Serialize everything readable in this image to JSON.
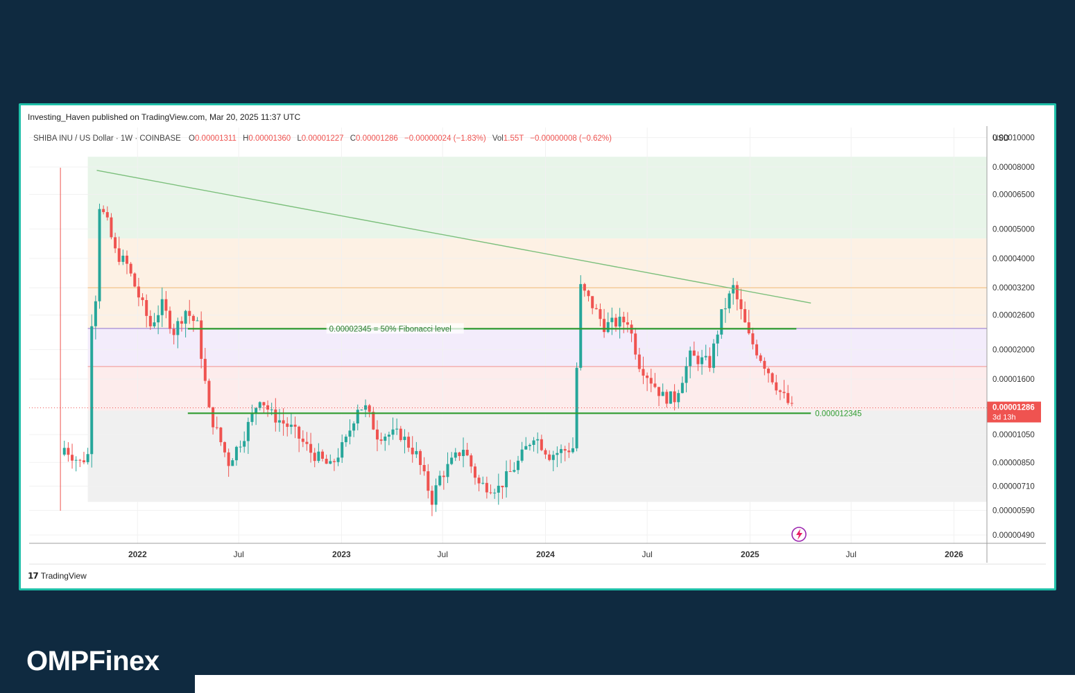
{
  "published": "Investing_Haven published on TradingView.com, Mar 20, 2025 11:37 UTC",
  "brand": {
    "tradingview": "TradingView",
    "logo_prefix": "OMPF",
    "logo_i": "i",
    "logo_suffix": "nex"
  },
  "header": {
    "symbol": "SHIBA INU / US Dollar · 1W · COINBASE",
    "o_label": "O",
    "o_value": "0.00001311",
    "h_label": "H",
    "h_value": "0.00001360",
    "l_label": "L",
    "l_value": "0.00001227",
    "c_label": "C",
    "c_value": "0.00001286",
    "change": "−0.00000024 (−1.83%)",
    "vol_label": "Vol",
    "vol_value": "1.55T",
    "vol_change": "−0.00000008 (−0.62%)"
  },
  "colors": {
    "up": "#26a69a",
    "down": "#ef5350",
    "trend": "#7bbf7b",
    "support": "#2e9b2e",
    "price_tag": "#ef5350"
  },
  "chart_data": {
    "type": "candlestick",
    "currency": "USD",
    "scale": "log",
    "y_ticks": [
      "0.00010000",
      "0.00008000",
      "0.00006500",
      "0.00005000",
      "0.00004000",
      "0.00003200",
      "0.00002600",
      "0.00002000",
      "0.00001600",
      "0.00001050",
      "0.00000850",
      "0.00000710",
      "0.00000590",
      "0.00000490"
    ],
    "x_ticks": [
      "2022",
      "Jul",
      "2023",
      "Jul",
      "2024",
      "Jul",
      "2025",
      "Jul",
      "2026"
    ],
    "x_tick_dates": [
      "2022-01-01",
      "2022-07-01",
      "2023-01-01",
      "2023-07-01",
      "2024-01-01",
      "2024-07-01",
      "2025-01-01",
      "2025-07-01",
      "2026-01-01"
    ],
    "last_price": "0.00001286",
    "countdown": "3d 13h",
    "fib_label": "0.00002345 = 50% Fibonacci level",
    "support_label": "0.000012345",
    "fib_zones": [
      {
        "from": 4.65e-05,
        "to": 8.65e-05,
        "color": "#e8f5e9"
      },
      {
        "from": 2.35e-05,
        "to": 4.65e-05,
        "color": "#fdf1e4"
      },
      {
        "from": 1.76e-05,
        "to": 2.35e-05,
        "color": "#f3ecfb"
      },
      {
        "from": 1.26e-05,
        "to": 1.76e-05,
        "color": "#fdecec"
      },
      {
        "from": 6.3e-06,
        "to": 1.26e-05,
        "color": "#f0f0f0"
      }
    ],
    "fib_lines": [
      {
        "price": 3.2e-05,
        "color": "#f3c38a"
      },
      {
        "price": 2.35e-05,
        "color": "#9b7fd1"
      },
      {
        "price": 1.76e-05,
        "color": "#f1a3a3"
      }
    ],
    "trendline": {
      "from": {
        "date": "2021-10-20",
        "price": 7.8e-05
      },
      "to": {
        "date": "2025-04-20",
        "price": 2.85e-05
      }
    },
    "support_levels": [
      {
        "price": 2.345e-05,
        "from": "2022-04-01",
        "to": "2025-03-25"
      },
      {
        "price": 1.2345e-05,
        "from": "2022-04-01",
        "to": "2025-04-20"
      }
    ],
    "last_price_value": 1.286e-05,
    "anchors": [
      [
        "2021-08-23",
        9.5e-06
      ],
      [
        "2021-09-20",
        8.5e-06
      ],
      [
        "2021-10-04",
        9e-06
      ],
      [
        "2021-10-11",
        2.5e-05
      ],
      [
        "2021-10-18",
        3e-05
      ],
      [
        "2021-10-25",
        6e-05
      ],
      [
        "2021-11-08",
        5.2e-05
      ],
      [
        "2021-11-22",
        4.2e-05
      ],
      [
        "2021-12-13",
        3.8e-05
      ],
      [
        "2022-01-03",
        3e-05
      ],
      [
        "2022-01-24",
        2.4e-05
      ],
      [
        "2022-02-14",
        2.8e-05
      ],
      [
        "2022-03-07",
        2.3e-05
      ],
      [
        "2022-03-28",
        2.7e-05
      ],
      [
        "2022-04-18",
        2.4e-05
      ],
      [
        "2022-05-09",
        1.25e-05
      ],
      [
        "2022-06-13",
        8.5e-06
      ],
      [
        "2022-07-11",
        1.05e-05
      ],
      [
        "2022-08-08",
        1.4e-05
      ],
      [
        "2022-08-29",
        1.22e-05
      ],
      [
        "2022-10-03",
        1.1e-05
      ],
      [
        "2022-11-07",
        9.2e-06
      ],
      [
        "2022-12-12",
        8.2e-06
      ],
      [
        "2023-01-09",
        1e-05
      ],
      [
        "2023-01-30",
        1.3e-05
      ],
      [
        "2023-02-13",
        1.28e-05
      ],
      [
        "2023-03-06",
        1.05e-05
      ],
      [
        "2023-04-17",
        1.05e-05
      ],
      [
        "2023-05-15",
        9e-06
      ],
      [
        "2023-06-12",
        6.4e-06
      ],
      [
        "2023-06-26",
        7.6e-06
      ],
      [
        "2023-08-07",
        9.5e-06
      ],
      [
        "2023-09-04",
        7.2e-06
      ],
      [
        "2023-10-09",
        7e-06
      ],
      [
        "2023-11-13",
        8.5e-06
      ],
      [
        "2023-12-11",
        1.05e-05
      ],
      [
        "2024-01-08",
        9e-06
      ],
      [
        "2024-02-19",
        9.5e-06
      ],
      [
        "2024-03-04",
        3.2e-05
      ],
      [
        "2024-03-25",
        2.8e-05
      ],
      [
        "2024-04-15",
        2.4e-05
      ],
      [
        "2024-05-27",
        2.5e-05
      ],
      [
        "2024-06-17",
        1.8e-05
      ],
      [
        "2024-07-29",
        1.4e-05
      ],
      [
        "2024-08-19",
        1.38e-05
      ],
      [
        "2024-09-16",
        1.9e-05
      ],
      [
        "2024-10-21",
        1.8e-05
      ],
      [
        "2024-11-11",
        2.6e-05
      ],
      [
        "2024-12-02",
        3.2e-05
      ],
      [
        "2024-12-30",
        2.2e-05
      ],
      [
        "2025-02-03",
        1.7e-05
      ],
      [
        "2025-02-24",
        1.45e-05
      ],
      [
        "2025-03-17",
        1.28e-05
      ]
    ]
  }
}
